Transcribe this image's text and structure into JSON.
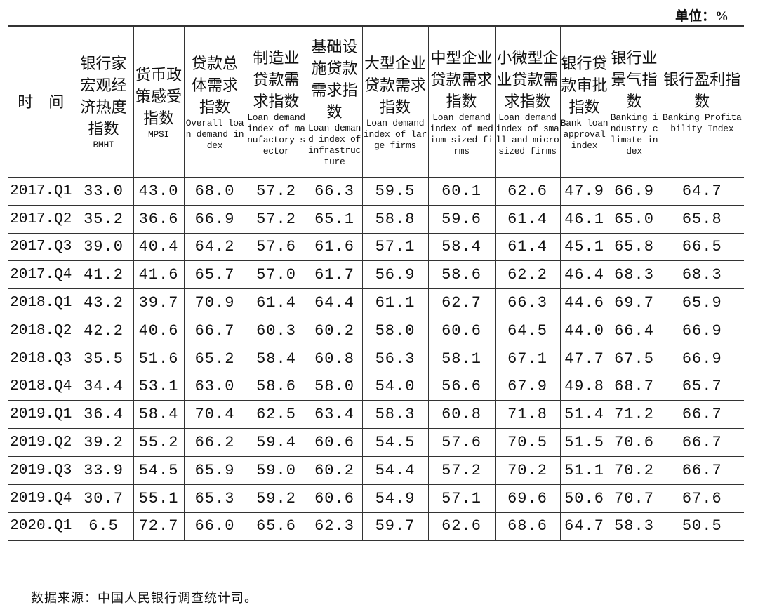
{
  "unit_label": "单位：%",
  "columns": [
    {
      "zh": "时　间",
      "en": ""
    },
    {
      "zh": "银行家宏观经济热度指数",
      "en": "BMHI"
    },
    {
      "zh": "货币政策感受指数",
      "en": "MPSI"
    },
    {
      "zh": "贷款总体需求指数",
      "en": "Overall loan demand index"
    },
    {
      "zh": "制造业贷款需求指数",
      "en": "Loan demand index of manufactory sector"
    },
    {
      "zh": "基础设施贷款需求指数",
      "en": "Loan demand index of infrastructure"
    },
    {
      "zh": "大型企业贷款需求指数",
      "en": "Loan demand index of large firms"
    },
    {
      "zh": "中型企业贷款需求指数",
      "en": "Loan demand index of medium-sized firms"
    },
    {
      "zh": "小微型企业贷款需求指数",
      "en": "Loan demand index of small and micro sized firms"
    },
    {
      "zh": "银行贷款审批指数",
      "en": "Bank loan approval index"
    },
    {
      "zh": "银行业景气指数",
      "en": "Banking industry climate index"
    },
    {
      "zh": "银行盈利指数",
      "en": "Banking Profitability Index"
    }
  ],
  "rows": [
    [
      "2017.Q1",
      "33.0",
      "43.0",
      "68.0",
      "57.2",
      "66.3",
      "59.5",
      "60.1",
      "62.6",
      "47.9",
      "66.9",
      "64.7"
    ],
    [
      "2017.Q2",
      "35.2",
      "36.6",
      "66.9",
      "57.2",
      "65.1",
      "58.8",
      "59.6",
      "61.4",
      "46.1",
      "65.0",
      "65.8"
    ],
    [
      "2017.Q3",
      "39.0",
      "40.4",
      "64.2",
      "57.6",
      "61.6",
      "57.1",
      "58.4",
      "61.4",
      "45.1",
      "65.8",
      "66.5"
    ],
    [
      "2017.Q4",
      "41.2",
      "41.6",
      "65.7",
      "57.0",
      "61.7",
      "56.9",
      "58.6",
      "62.2",
      "46.4",
      "68.3",
      "68.3"
    ],
    [
      "2018.Q1",
      "43.2",
      "39.7",
      "70.9",
      "61.4",
      "64.4",
      "61.1",
      "62.7",
      "66.3",
      "44.6",
      "69.7",
      "65.9"
    ],
    [
      "2018.Q2",
      "42.2",
      "40.6",
      "66.7",
      "60.3",
      "60.2",
      "58.0",
      "60.6",
      "64.5",
      "44.0",
      "66.4",
      "66.9"
    ],
    [
      "2018.Q3",
      "35.5",
      "51.6",
      "65.2",
      "58.4",
      "60.8",
      "56.3",
      "58.1",
      "67.1",
      "47.7",
      "67.5",
      "66.9"
    ],
    [
      "2018.Q4",
      "34.4",
      "53.1",
      "63.0",
      "58.6",
      "58.0",
      "54.0",
      "56.6",
      "67.9",
      "49.8",
      "68.7",
      "65.7"
    ],
    [
      "2019.Q1",
      "36.4",
      "58.4",
      "70.4",
      "62.5",
      "63.4",
      "58.3",
      "60.8",
      "71.8",
      "51.4",
      "71.2",
      "66.7"
    ],
    [
      "2019.Q2",
      "39.2",
      "55.2",
      "66.2",
      "59.4",
      "60.6",
      "54.5",
      "57.6",
      "70.5",
      "51.5",
      "70.6",
      "66.7"
    ],
    [
      "2019.Q3",
      "33.9",
      "54.5",
      "65.9",
      "59.0",
      "60.2",
      "54.4",
      "57.2",
      "70.2",
      "51.1",
      "70.2",
      "66.7"
    ],
    [
      "2019.Q4",
      "30.7",
      "55.1",
      "65.3",
      "59.2",
      "60.6",
      "54.9",
      "57.1",
      "69.6",
      "50.6",
      "70.7",
      "67.6"
    ],
    [
      "2020.Q1",
      "6.5",
      "72.7",
      "66.0",
      "65.6",
      "62.3",
      "59.7",
      "62.6",
      "68.6",
      "64.7",
      "58.3",
      "50.5"
    ]
  ],
  "source_note": "数据来源：中国人民银行调查统计司。"
}
